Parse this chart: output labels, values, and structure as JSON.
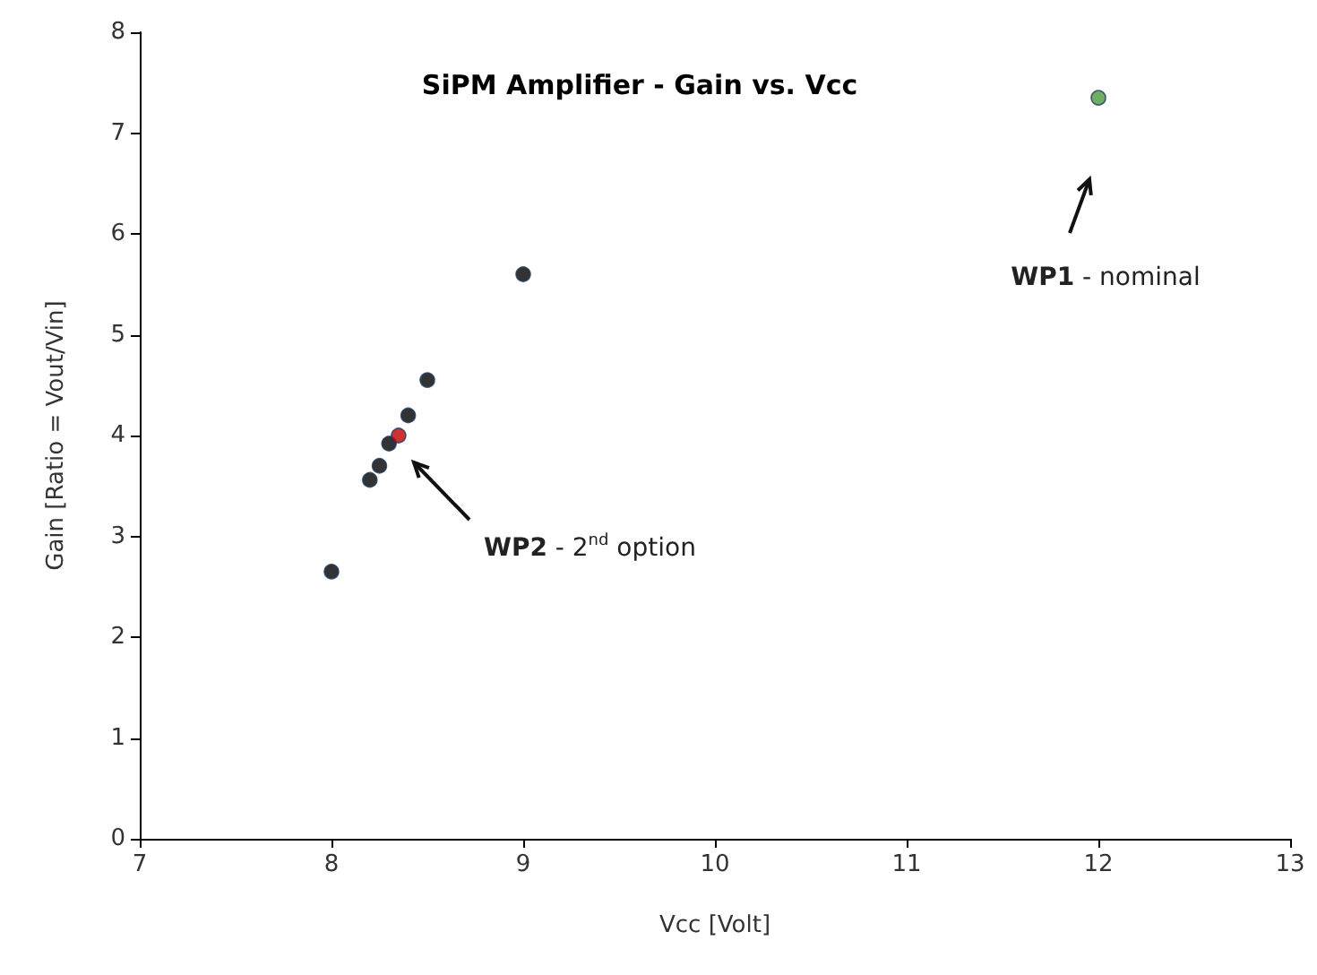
{
  "chart_data": {
    "type": "scatter",
    "title": "SiPM Amplifier - Gain vs. Vcc",
    "xlabel": "Vcc [Volt]",
    "ylabel": "Gain [Ratio = Vout/Vin]",
    "series": [
      {
        "color": "#000000",
        "x": [
          8.0,
          8.2,
          8.25,
          8.3,
          8.4,
          8.5,
          9.0
        ],
        "values": [
          2.65,
          3.56,
          3.7,
          3.92,
          4.2,
          4.55,
          5.6
        ]
      },
      {
        "color": "#c00000",
        "x": [
          8.35
        ],
        "values": [
          4.0
        ]
      },
      {
        "color": "#4e9a3e",
        "x": [
          12.0
        ],
        "values": [
          7.35
        ]
      }
    ],
    "xlim": [
      7,
      13
    ],
    "xticks": [
      7,
      8,
      9,
      10,
      11,
      12,
      13
    ],
    "ylim": [
      0,
      8
    ],
    "yticks": [
      0,
      1,
      2,
      3,
      4,
      5,
      6,
      7,
      8
    ],
    "grid": false,
    "marker": "circle",
    "annotations": [
      "WP1 - nominal",
      "WP2 - 2$^{nd}$ option"
    ]
  }
}
